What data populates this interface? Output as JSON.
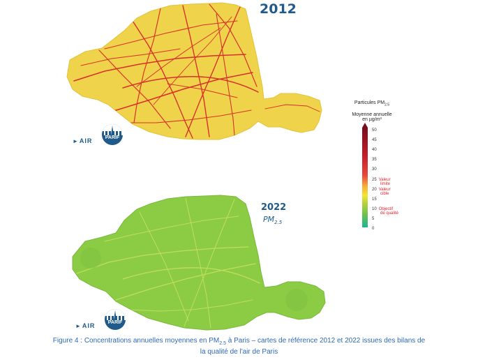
{
  "maps": [
    {
      "year": "2012",
      "logo": {
        "prefix": "AIR",
        "suffix": "PARIF"
      }
    },
    {
      "year": "2022",
      "pollutant": "PM",
      "pollutant_sub": "2.5",
      "logo": {
        "prefix": "AIR",
        "suffix": "PARIF"
      }
    }
  ],
  "legend": {
    "title": "Particules PM",
    "title_sub": "2.5",
    "subtitle": "Moyenne annuelle",
    "unit": "en µg/m³",
    "ticks": [
      "50",
      "45",
      "40",
      "35",
      "30",
      "25",
      "20",
      "15",
      "10",
      "5",
      "0"
    ],
    "thresholds": [
      {
        "value": "25",
        "line1": "Valeur",
        "line2": "limite"
      },
      {
        "value": "20",
        "line1": "Valeur",
        "line2": "cible"
      },
      {
        "value": "10",
        "line1": "Objectif",
        "line2": "de qualité"
      }
    ]
  },
  "colors": {
    "accent": "#1f5a8a",
    "caption": "#2d68b8",
    "threshold": "#e2242e",
    "map_2012_fill": "#efd34a",
    "map_2012_roads": "#d8302b",
    "map_2022_fill": "#8ccc45",
    "map_2022_roads": "#cbe163"
  },
  "caption": {
    "line1_a": "Figure 4 : Concentrations annuelles moyennes en PM",
    "line1_sub": "2.5",
    "line1_b": " à Paris – cartes de référence 2012 et 2022 issues des bilans de",
    "line2": "la qualité de l'air de Paris"
  }
}
